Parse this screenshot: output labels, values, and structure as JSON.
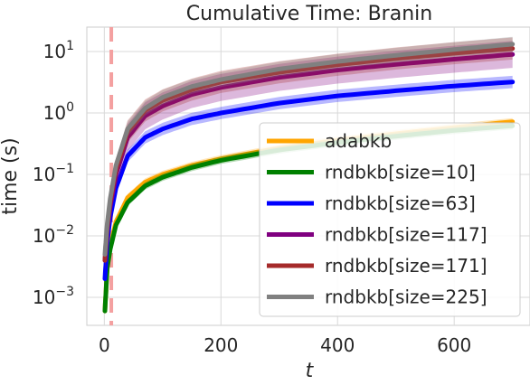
{
  "chart_data": {
    "type": "line",
    "title": "Cumulative Time: Branin",
    "xlabel": "t",
    "ylabel": "time (s)",
    "xlim": [
      -30,
      730
    ],
    "ylim": [
      0.00035,
      25
    ],
    "yscale": "log",
    "grid": true,
    "legend_position": "lower-right",
    "x_ticks": [
      0,
      200,
      400,
      600
    ],
    "x_tick_labels": [
      "0",
      "200",
      "400",
      "600"
    ],
    "y_ticks": [
      0.001,
      0.01,
      0.1,
      1,
      10
    ],
    "y_tick_labels_base": [
      "10",
      "10",
      "10",
      "10",
      "10"
    ],
    "y_tick_labels_exp": [
      "−3",
      "−2",
      "−1",
      "0",
      "1"
    ],
    "vline": {
      "x": 12,
      "color": "#f4a0a0"
    },
    "series": [
      {
        "name": "adabkb",
        "color": "#ffa500",
        "x": [
          1,
          5,
          10,
          20,
          40,
          70,
          100,
          150,
          200,
          300,
          400,
          500,
          600,
          700
        ],
        "y": [
          0.0006,
          0.003,
          0.007,
          0.017,
          0.042,
          0.075,
          0.1,
          0.14,
          0.18,
          0.27,
          0.36,
          0.46,
          0.58,
          0.72
        ],
        "band": 0.06
      },
      {
        "name": "rndbkb[size=10]",
        "color": "#008000",
        "x": [
          1,
          5,
          10,
          20,
          40,
          70,
          100,
          150,
          200,
          300,
          400,
          500,
          600,
          700
        ],
        "y": [
          0.0006,
          0.003,
          0.006,
          0.015,
          0.035,
          0.065,
          0.09,
          0.13,
          0.17,
          0.25,
          0.33,
          0.42,
          0.52,
          0.62
        ],
        "band": 0.06
      },
      {
        "name": "rndbkb[size=63]",
        "color": "#0000ff",
        "x": [
          1,
          5,
          10,
          20,
          40,
          70,
          100,
          150,
          200,
          300,
          400,
          500,
          600,
          700
        ],
        "y": [
          0.002,
          0.008,
          0.02,
          0.06,
          0.2,
          0.4,
          0.55,
          0.8,
          1.0,
          1.45,
          1.9,
          2.3,
          2.75,
          3.2
        ],
        "band": 0.1
      },
      {
        "name": "rndbkb[size=117]",
        "color": "#800080",
        "x": [
          1,
          5,
          10,
          20,
          40,
          70,
          100,
          150,
          200,
          300,
          400,
          500,
          600,
          700
        ],
        "y": [
          0.004,
          0.012,
          0.03,
          0.1,
          0.4,
          0.9,
          1.3,
          2.0,
          2.6,
          3.8,
          5.0,
          6.2,
          7.5,
          9.0
        ],
        "band": 0.22
      },
      {
        "name": "rndbkb[size=171]",
        "color": "#a52a2a",
        "x": [
          1,
          5,
          10,
          20,
          40,
          70,
          100,
          150,
          200,
          300,
          400,
          500,
          600,
          700
        ],
        "y": [
          0.004,
          0.014,
          0.035,
          0.12,
          0.5,
          1.1,
          1.6,
          2.4,
          3.2,
          4.6,
          6.1,
          7.7,
          9.4,
          11.2
        ],
        "band": 0.18
      },
      {
        "name": "rndbkb[size=225]",
        "color": "#808080",
        "x": [
          1,
          5,
          10,
          20,
          40,
          70,
          100,
          150,
          200,
          300,
          400,
          500,
          600,
          700
        ],
        "y": [
          0.005,
          0.016,
          0.04,
          0.14,
          0.55,
          1.2,
          1.8,
          2.7,
          3.5,
          5.2,
          6.9,
          8.7,
          10.8,
          13.2
        ],
        "band": 0.12
      }
    ]
  }
}
